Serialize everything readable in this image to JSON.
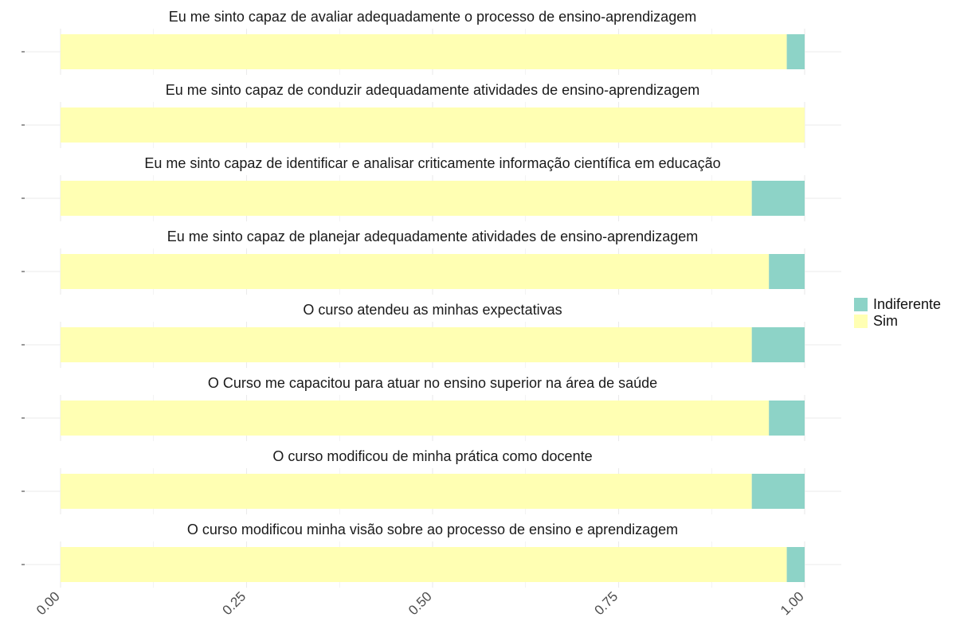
{
  "chart_data": {
    "type": "bar",
    "orientation": "horizontal",
    "stacked": true,
    "normalized": true,
    "facets": [
      "Eu me sinto capaz de avaliar adequadamente o processo de ensino-aprendizagem",
      "Eu me sinto capaz de conduzir adequadamente atividades de ensino-aprendizagem",
      "Eu me sinto capaz de identificar e analisar criticamente informação científica em educação",
      "Eu me sinto capaz de planejar adequadamente atividades de ensino-aprendizagem",
      "O curso atendeu as minhas expectativas",
      "O Curso me capacitou para atuar no ensino superior na área de saúde",
      "O curso modificou de minha prática como docente",
      "O curso modificou minha visão sobre ao processo de ensino e aprendizagem"
    ],
    "series": [
      {
        "name": "Sim",
        "color": "#FFFFB3",
        "values": [
          0.976,
          1.0,
          0.929,
          0.952,
          0.929,
          0.952,
          0.929,
          0.976
        ]
      },
      {
        "name": "Indiferente",
        "color": "#8DD3C7",
        "values": [
          0.024,
          0.0,
          0.071,
          0.048,
          0.071,
          0.048,
          0.071,
          0.024
        ]
      }
    ],
    "xlim": [
      0,
      1
    ],
    "x_ticks": [
      "0.00",
      "0.25",
      "0.50",
      "0.75",
      "1.00"
    ],
    "grid": true,
    "legend_position": "right",
    "legend": [
      {
        "name": "Indiferente",
        "color": "#8DD3C7"
      },
      {
        "name": "Sim",
        "color": "#FFFFB3"
      }
    ]
  }
}
